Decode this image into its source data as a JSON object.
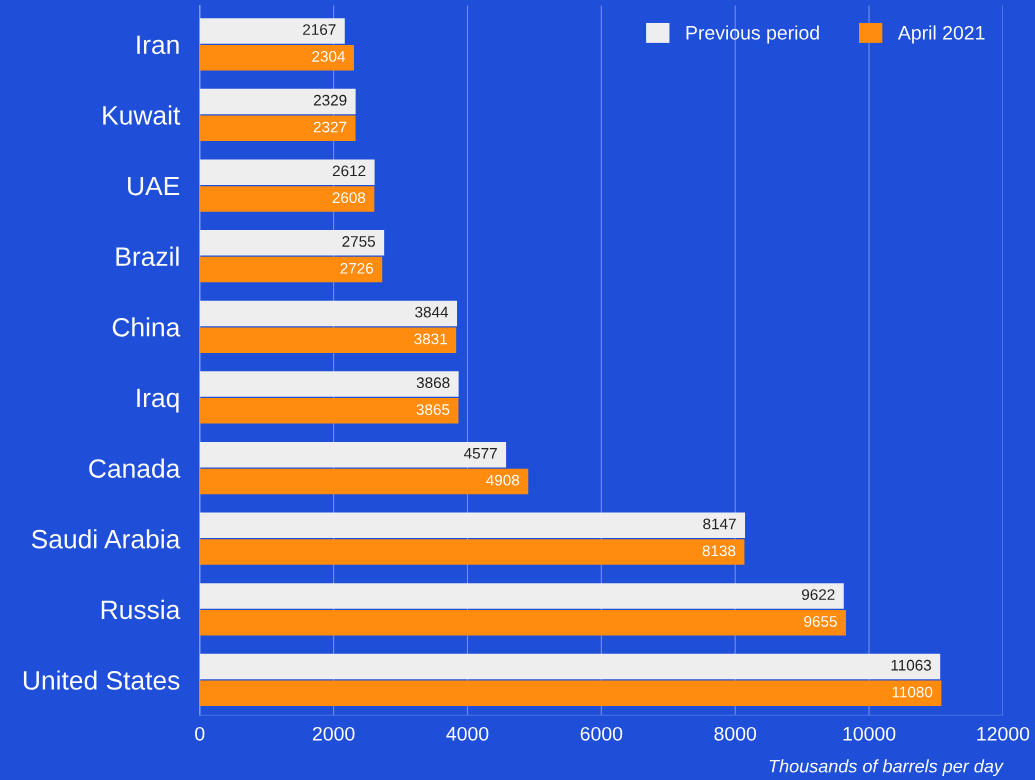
{
  "chart_data": {
    "type": "bar",
    "orientation": "horizontal",
    "categories": [
      "Iran",
      "Kuwait",
      "UAE",
      "Brazil",
      "China",
      "Iraq",
      "Canada",
      "Saudi Arabia",
      "Russia",
      "United States"
    ],
    "series": [
      {
        "name": "Previous period",
        "color": "#eeeeee",
        "values": [
          2167,
          2329,
          2612,
          2755,
          3844,
          3868,
          4577,
          8147,
          9622,
          11063
        ]
      },
      {
        "name": "April 2021",
        "color": "#ff8c0f",
        "values": [
          2304,
          2327,
          2608,
          2726,
          3831,
          3865,
          4908,
          8138,
          9655,
          11080
        ]
      }
    ],
    "xlabel": "Thousands of barrels per day",
    "xlim": [
      0,
      12000
    ],
    "xticks": [
      0,
      2000,
      4000,
      6000,
      8000,
      10000,
      12000
    ],
    "grid": "x",
    "legend": "top right",
    "data_labels": true
  }
}
